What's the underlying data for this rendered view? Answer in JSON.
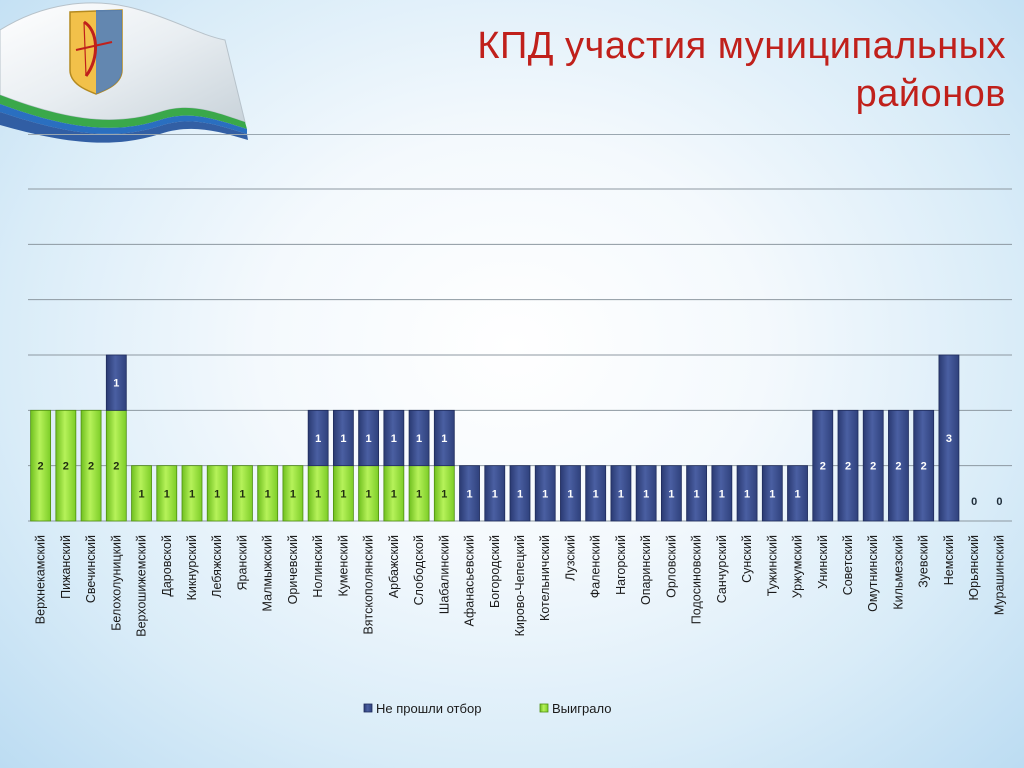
{
  "page": {
    "title": "КПД участия муниципальных районов"
  },
  "colors": {
    "title": "#c0201b",
    "won": "#9be63a",
    "rejected": "#3a4f8e"
  },
  "icons": {
    "flag": "kirov-oblast-flag"
  },
  "chart_data": {
    "type": "bar",
    "stacked": true,
    "ylim": [
      0,
      6
    ],
    "grid": true,
    "legend": "bottom",
    "categories": [
      "Верхнекамский",
      "Пижанский",
      "Свечинский",
      "Белохолуницкий",
      "Верхошижемский",
      "Даровской",
      "Кикнурский",
      "Лебяжский",
      "Яранский",
      "Малмыжский",
      "Оричевский",
      "Нолинский",
      "Куменский",
      "Вятскополянский",
      "Арбажский",
      "Слободской",
      "Шабалинский",
      "Афанасьевский",
      "Богородский",
      "Кирово-Чепецкий",
      "Котельничский",
      "Лузский",
      "Фаленский",
      "Нагорский",
      "Опаринский",
      "Орловский",
      "Подосиновский",
      "Санчурский",
      "Сунский",
      "Тужинский",
      "Уржумский",
      "Унинский",
      "Советский",
      "Омутнинский",
      "Кильмезский",
      "Зуевский",
      "Немский",
      "Юрьянский",
      "Мурашинский"
    ],
    "series": [
      {
        "name": "Выиграло",
        "color": "#9be63a",
        "values": [
          2,
          2,
          2,
          2,
          1,
          1,
          1,
          1,
          1,
          1,
          1,
          1,
          1,
          1,
          1,
          1,
          1,
          0,
          0,
          0,
          0,
          0,
          0,
          0,
          0,
          0,
          0,
          0,
          0,
          0,
          0,
          0,
          0,
          0,
          0,
          0,
          0,
          0,
          0
        ]
      },
      {
        "name": "Не прошли отбор",
        "color": "#3a4f8e",
        "values": [
          0,
          0,
          0,
          1,
          0,
          0,
          0,
          0,
          0,
          0,
          0,
          1,
          1,
          1,
          1,
          1,
          1,
          1,
          1,
          1,
          1,
          1,
          1,
          1,
          1,
          1,
          1,
          1,
          1,
          1,
          1,
          2,
          2,
          2,
          2,
          2,
          3,
          0,
          0
        ]
      }
    ],
    "legend_order": [
      "Не прошли отбор",
      "Выиграло"
    ]
  }
}
